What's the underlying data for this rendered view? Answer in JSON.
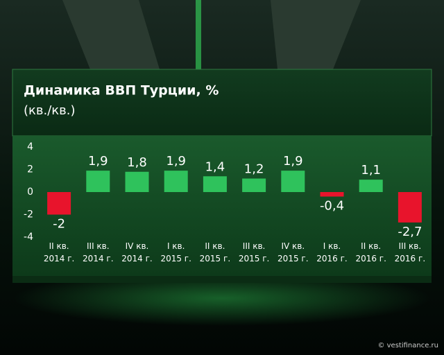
{
  "chart_data": {
    "type": "bar",
    "title": "Динамика ВВП Турции, %",
    "subtitle": "(кв./кв.)",
    "categories": [
      "II кв.\n2014 г.",
      "III кв.\n2014 г.",
      "IV кв.\n2014 г.",
      "I кв.\n2015 г.",
      "II кв.\n2015 г.",
      "III кв.\n2015 г.",
      "IV кв.\n2015 г.",
      "I кв.\n2016 г.",
      "II кв.\n2016 г.",
      "III кв.\n2016 г."
    ],
    "values": [
      -2,
      1.9,
      1.8,
      1.9,
      1.4,
      1.2,
      1.9,
      -0.4,
      1.1,
      -2.7
    ],
    "value_labels": [
      "-2",
      "1,9",
      "1,8",
      "1,9",
      "1,4",
      "1,2",
      "1,9",
      "-0,4",
      "1,1",
      "-2,7"
    ],
    "positive_color": "#2fc25c",
    "negative_color": "#e8142c",
    "ylim": [
      -4,
      4
    ],
    "yticks": [
      4,
      2,
      0,
      -2,
      -4
    ],
    "grid": false,
    "source": "© vestifinance.ru"
  }
}
